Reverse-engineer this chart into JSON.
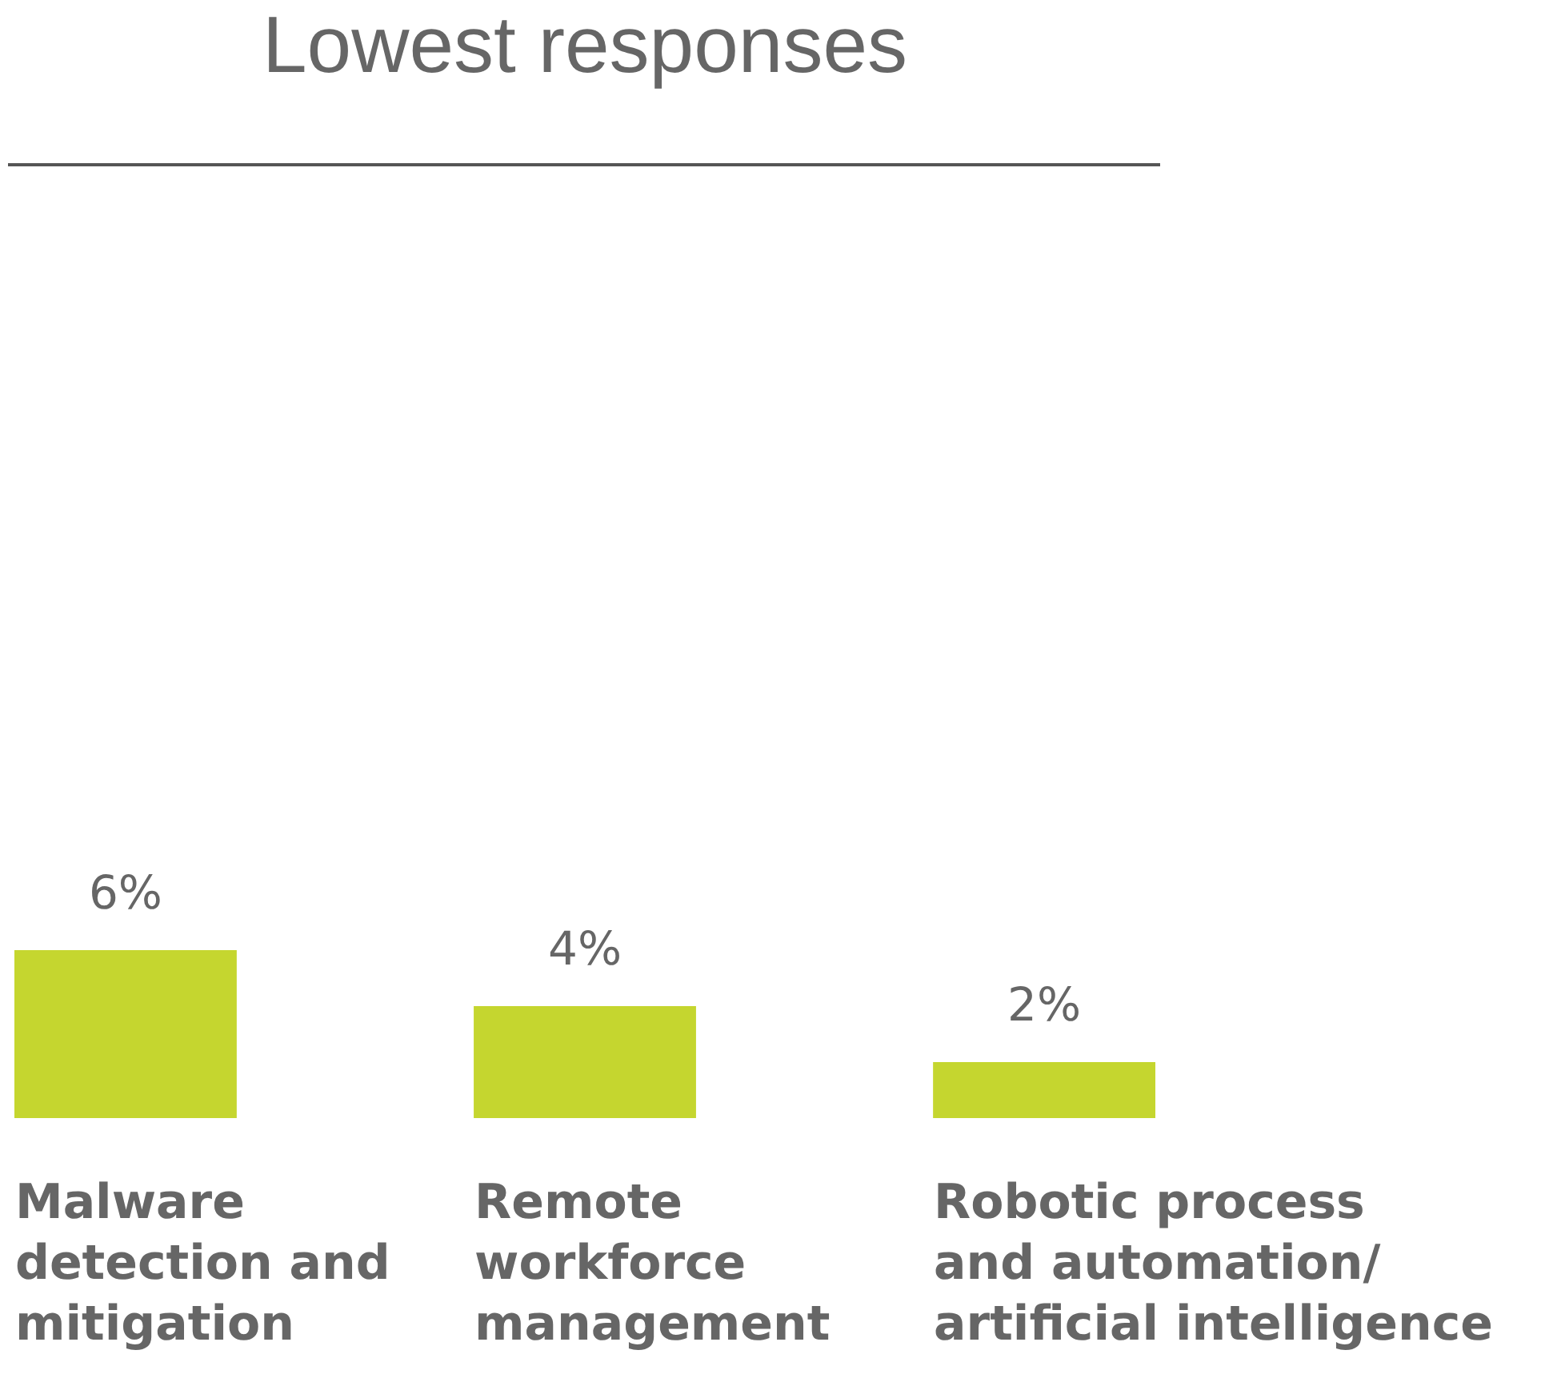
{
  "chart_data": {
    "type": "bar",
    "title": "Lowest responses",
    "categories": [
      "Malware\ndetection and\nmitigation",
      "Remote\nworkforce\nmanagement",
      "Robotic process\nand automation/\nartificial intelligence"
    ],
    "values": [
      6,
      4,
      2
    ],
    "value_labels": [
      "6%",
      "4%",
      "2%"
    ],
    "color": "#c5d62f"
  }
}
